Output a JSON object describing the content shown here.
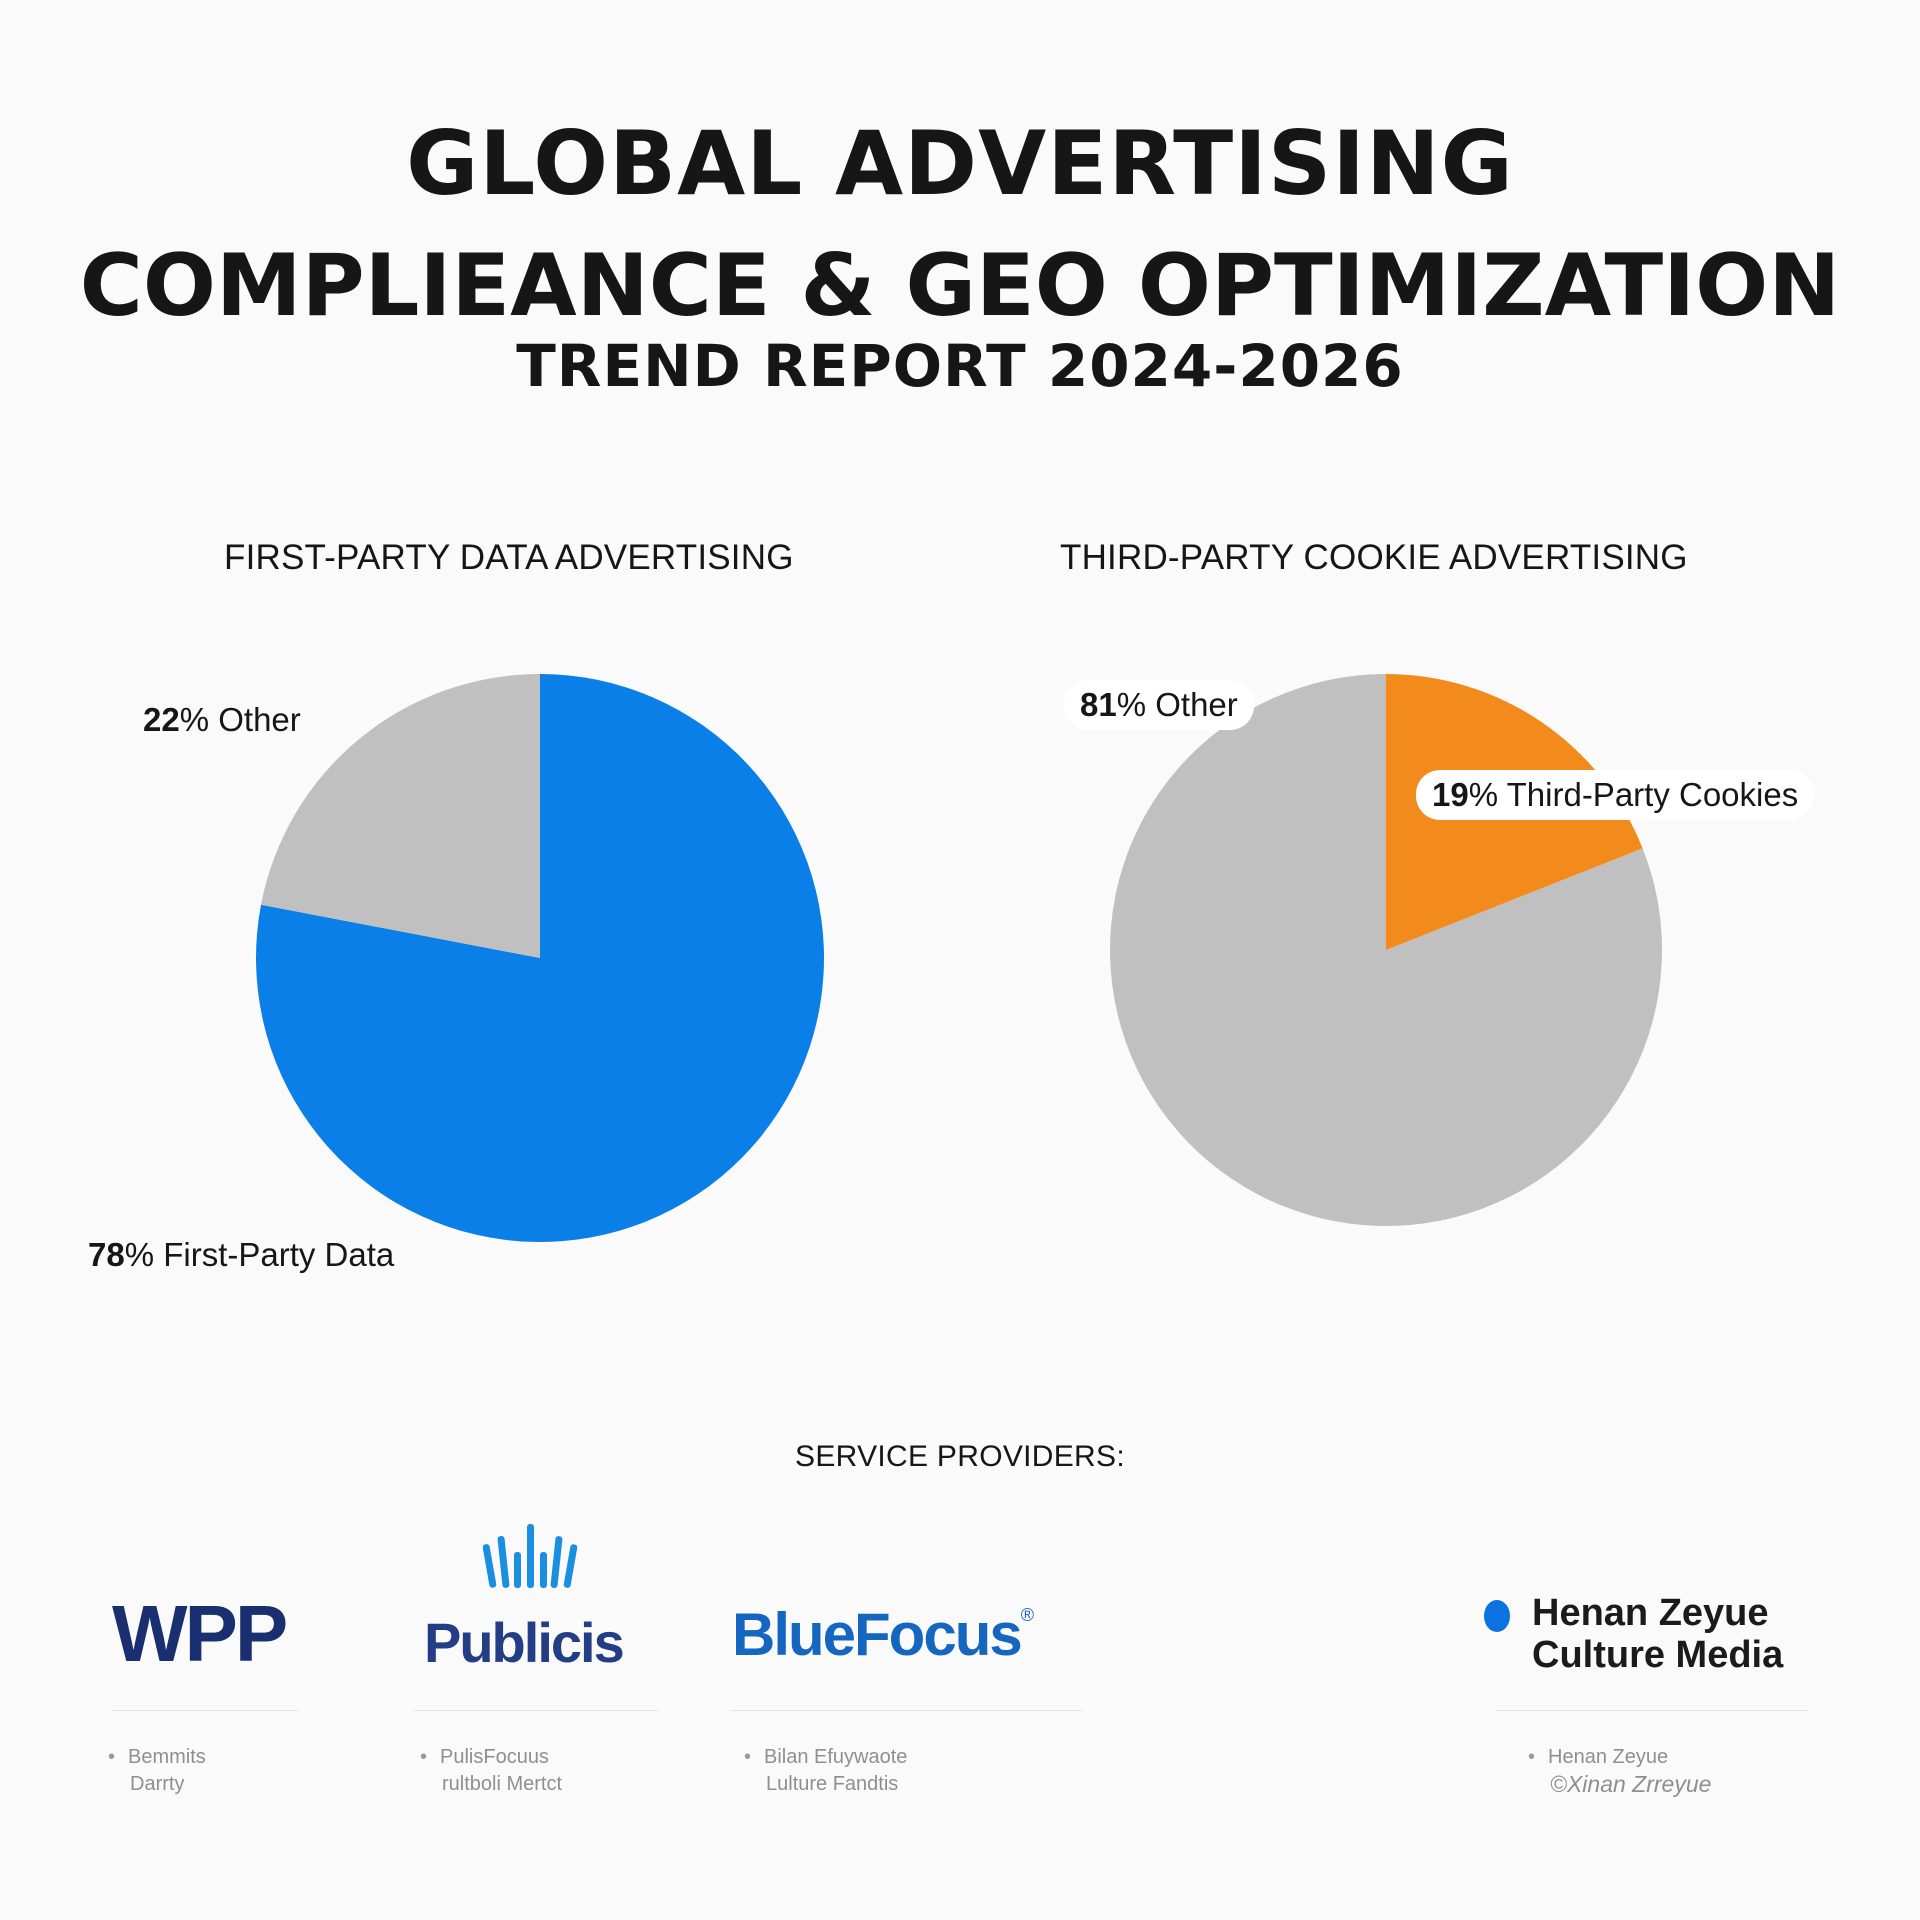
{
  "header": {
    "title_line1": "GLOBAL ADVERTISING",
    "title_line2": "COMPLIEANCE & GEO  OPTIMIZATION",
    "title_line3": "TREND REPORT  2024-2026"
  },
  "colors": {
    "first_party": "#0a7fe8",
    "third_party_cookies": "#f28a1c",
    "other": "#c0c0c0"
  },
  "chart_data": [
    {
      "type": "pie",
      "title": "FIRST-PARTY DATA ADVERTISING",
      "slices": [
        {
          "label": "First-Party Data",
          "value": 78,
          "pct_text": "78",
          "rest_text": "% First-Party Data",
          "color": "#0a7fe8"
        },
        {
          "label": "Other",
          "value": 22,
          "pct_text": "22",
          "rest_text": "% Other",
          "color": "#c0c0c0"
        }
      ]
    },
    {
      "type": "pie",
      "title": "THIRD-PARTY COOKIE ADVERTISING",
      "slices": [
        {
          "label": "Third-Party Cookies",
          "value": 19,
          "pct_text": "19",
          "rest_text": "% Third-Party Cookies",
          "color": "#f28a1c"
        },
        {
          "label": "Other",
          "value": 81,
          "pct_text": "81",
          "rest_text": "% Other",
          "color": "#c0c0c0"
        }
      ]
    }
  ],
  "providers": {
    "title": "SERVICE PROVIDERS:",
    "logos": {
      "wpp": "WPP",
      "publicis": "Publicis",
      "bluefocus": "BlueFocus",
      "bluefocus_mark": "®",
      "henan_line1": "Henan Zeyue",
      "henan_line2": "Culture Media"
    },
    "captions": [
      {
        "bullet": "•",
        "line1": "Bemmits",
        "line2": "Darrty"
      },
      {
        "bullet": "•",
        "line1": "PulisFocuus",
        "line2": "rultboli Mertct"
      },
      {
        "bullet": "•",
        "line1": "Bilan Efuywaote",
        "line2": "Lulture Fandtis"
      },
      {
        "bullet": "•",
        "line1": "Henan Zeyue",
        "line2": "©Xinan Zrreyue"
      }
    ]
  }
}
